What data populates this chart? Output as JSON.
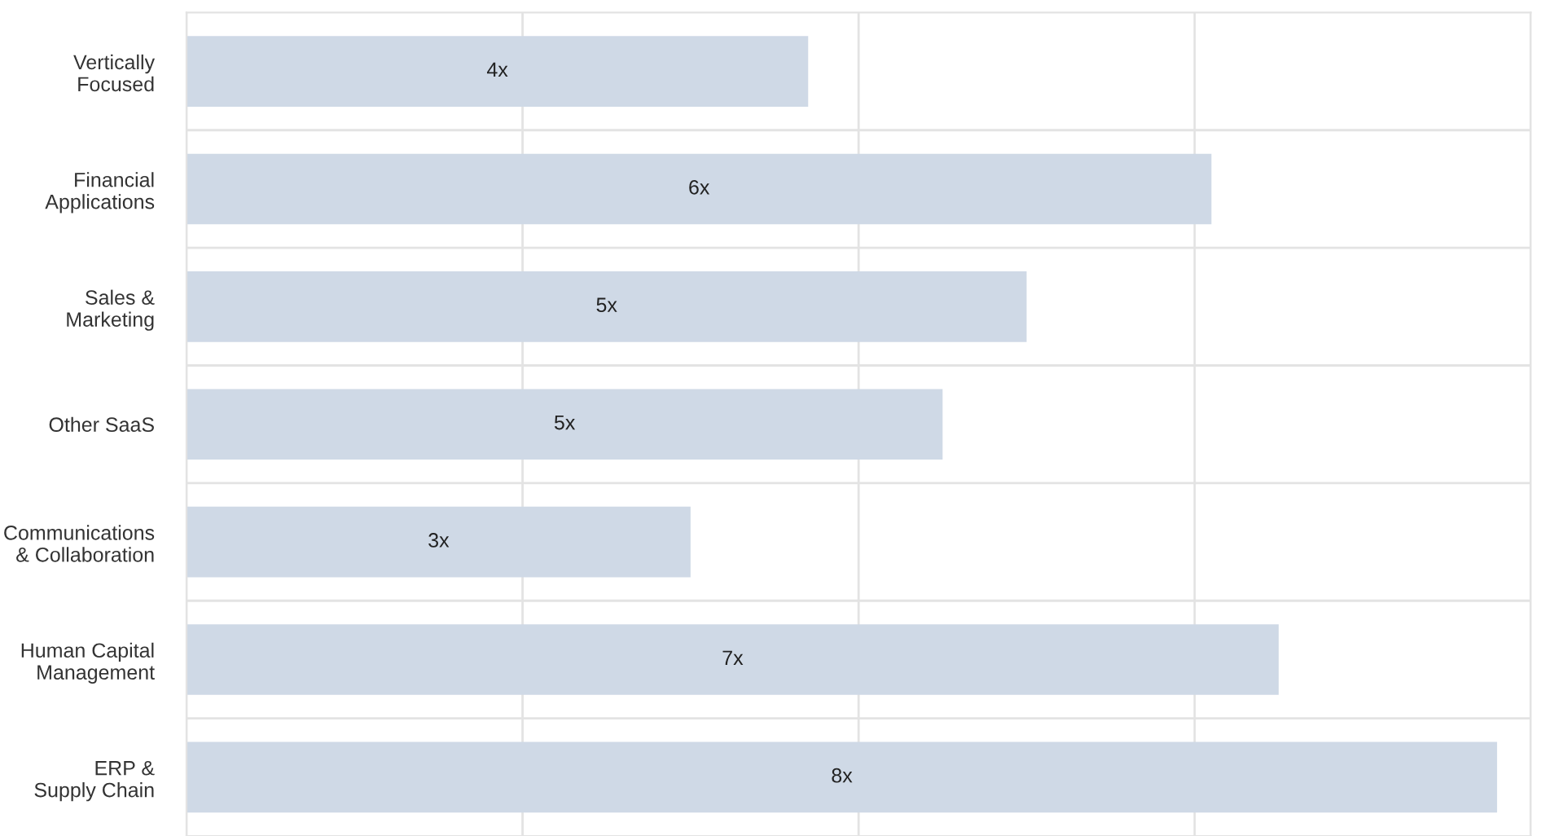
{
  "chart_data": {
    "type": "bar",
    "orientation": "horizontal",
    "categories": [
      "Vertically\nFocused",
      "Financial\nApplications",
      "Sales &\nMarketing",
      "Other SaaS",
      "Communications\n& Collaboration",
      "Human Capital\nManagement",
      "ERP &\nSupply Chain"
    ],
    "values": [
      3.7,
      6.1,
      5.0,
      4.5,
      3.0,
      6.5,
      7.8
    ],
    "value_labels": [
      "4x",
      "6x",
      "5x",
      "5x",
      "3x",
      "7x",
      "8x"
    ],
    "xlim": [
      0,
      8
    ],
    "xticks": [
      {
        "value": 0,
        "label": null
      },
      {
        "value": 2,
        "label": null
      },
      {
        "value": 4,
        "label": null
      },
      {
        "value": 6,
        "label": null
      },
      {
        "value": 8,
        "label": null
      }
    ],
    "tick_labels": "y",
    "color": "#cfd9e6",
    "grid": true
  }
}
